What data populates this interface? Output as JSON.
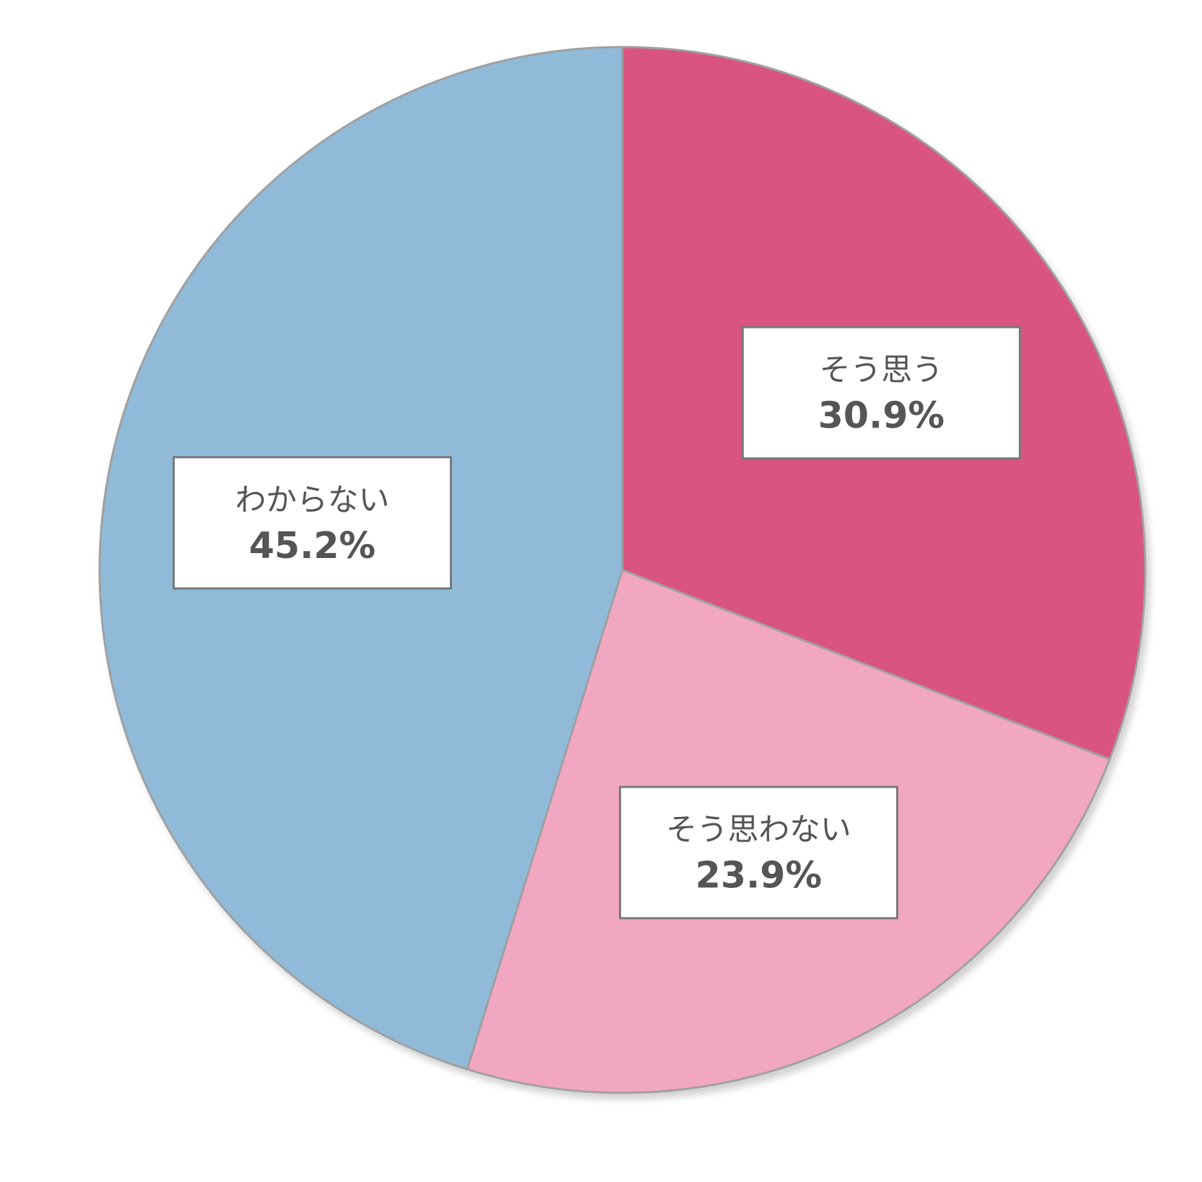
{
  "chart_data": {
    "type": "pie",
    "categories": [
      "そう思う",
      "そう思わない",
      "わからない"
    ],
    "values": [
      30.9,
      23.9,
      45.2
    ],
    "value_labels": [
      "30.9%",
      "23.9%",
      "45.2%"
    ],
    "colors": [
      "#d95383",
      "#f1a7c1",
      "#90bad8"
    ]
  }
}
